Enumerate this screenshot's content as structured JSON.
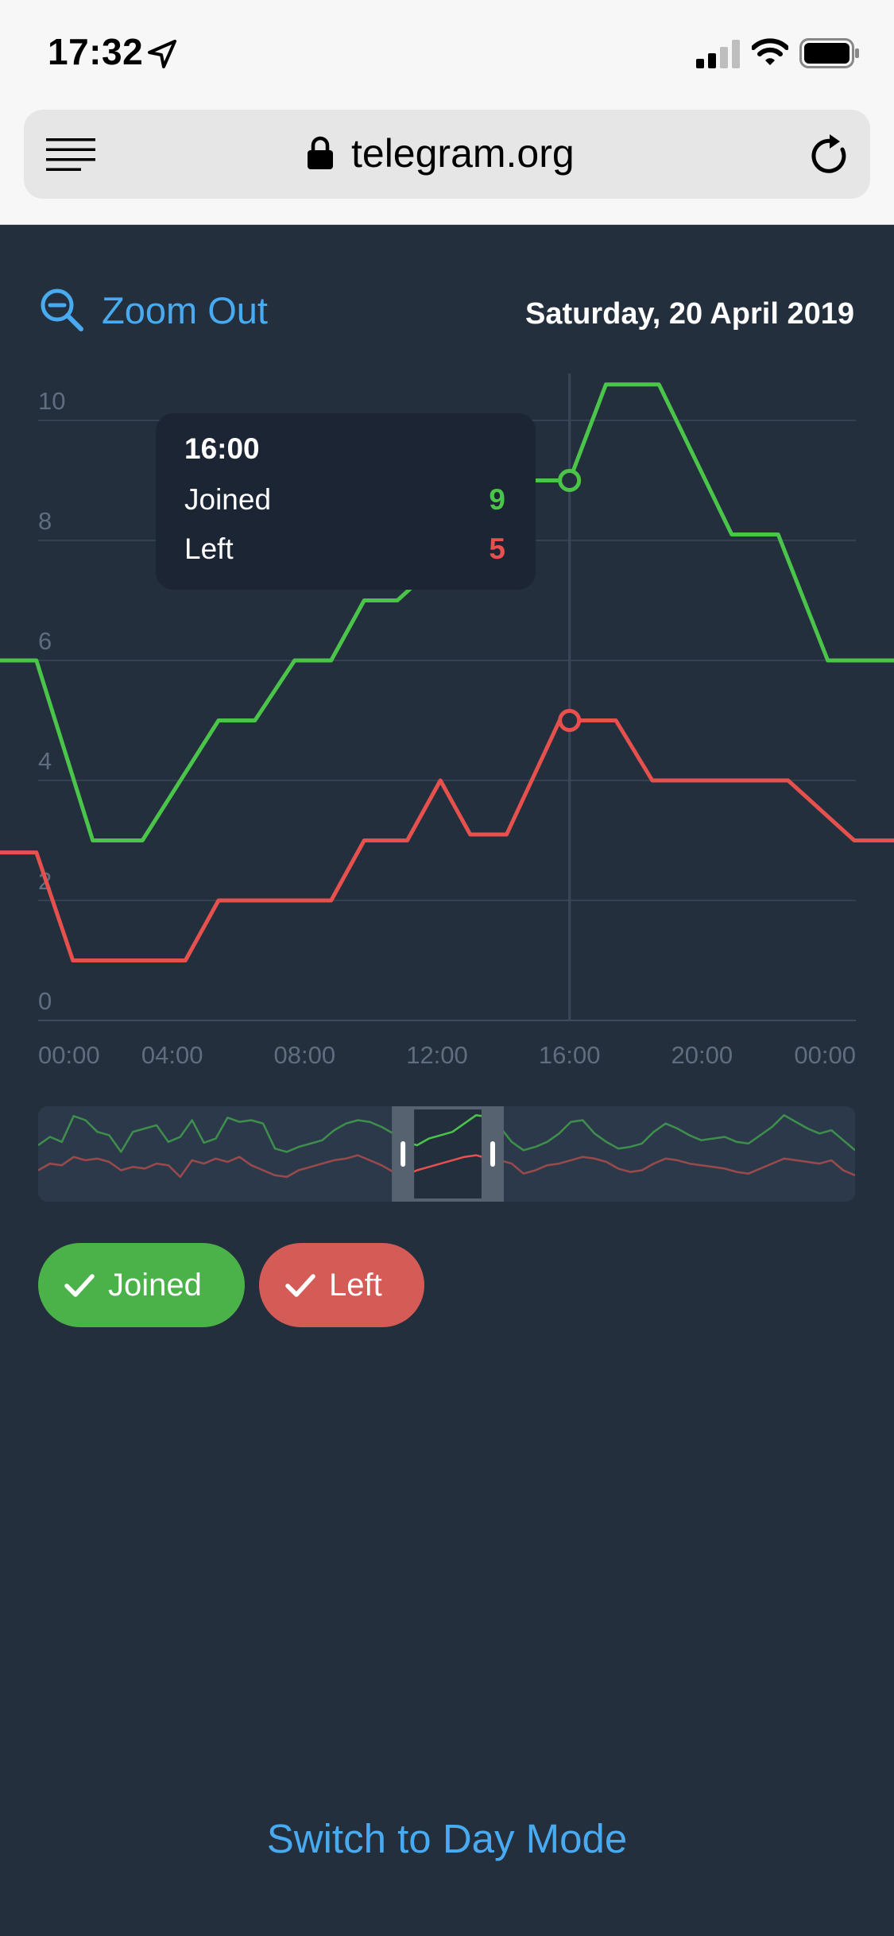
{
  "status_bar": {
    "time": "17:32",
    "nav_icon": "location-arrow-icon",
    "signal_icon": "cellular-signal-icon",
    "wifi_icon": "wifi-icon",
    "battery_icon": "battery-icon"
  },
  "browser": {
    "url": "telegram.org",
    "menu_icon": "reader-menu-icon",
    "lock_icon": "lock-icon",
    "reload_icon": "reload-icon"
  },
  "chart_header": {
    "zoom_out_label": "Zoom Out",
    "date": "Saturday, 20 April 2019"
  },
  "tooltip": {
    "time": "16:00",
    "joined_label": "Joined",
    "joined_value": "9",
    "left_label": "Left",
    "left_value": "5"
  },
  "chart_data": {
    "type": "line",
    "ylim": [
      0,
      10.8
    ],
    "y_ticks": [
      "0",
      "2",
      "4",
      "6",
      "8",
      "10"
    ],
    "x_ticks": [
      "00:00",
      "04:00",
      "08:00",
      "12:00",
      "16:00",
      "20:00",
      "00:00"
    ],
    "xlim": [
      -1.2,
      25.8
    ],
    "selected_x": 16,
    "series": [
      {
        "name": "Joined",
        "color": "#4BC44A",
        "points": [
          [
            -1.2,
            6
          ],
          [
            -0.1,
            6
          ],
          [
            1.6,
            3
          ],
          [
            3.1,
            3
          ],
          [
            5.4,
            5
          ],
          [
            6.5,
            5
          ],
          [
            7.7,
            6
          ],
          [
            8.8,
            6
          ],
          [
            9.8,
            7
          ],
          [
            10.8,
            7
          ],
          [
            14.8,
            9
          ],
          [
            16,
            9
          ],
          [
            17.1,
            10.6
          ],
          [
            18.7,
            10.6
          ],
          [
            20.9,
            8.1
          ],
          [
            22.3,
            8.1
          ],
          [
            23.8,
            6
          ],
          [
            25.8,
            6
          ]
        ]
      },
      {
        "name": "Left",
        "color": "#E6514E",
        "points": [
          [
            -1.2,
            2.8
          ],
          [
            -0.1,
            2.8
          ],
          [
            1,
            1
          ],
          [
            4.4,
            1
          ],
          [
            5.4,
            2
          ],
          [
            8.8,
            2
          ],
          [
            9.8,
            3
          ],
          [
            11.1,
            3
          ],
          [
            12.1,
            4
          ],
          [
            13,
            3.1
          ],
          [
            14.1,
            3.1
          ],
          [
            15.7,
            5
          ],
          [
            17.4,
            5
          ],
          [
            18.5,
            4
          ],
          [
            22.6,
            4
          ],
          [
            24.6,
            3
          ],
          [
            25.8,
            3
          ]
        ]
      }
    ]
  },
  "navigator": {
    "joined": [
      6.0,
      7.0,
      6.4,
      9.5,
      9.0,
      7.6,
      7.2,
      5.2,
      7.6,
      8.0,
      8.4,
      6.4,
      7.0,
      9.0,
      6.3,
      6.8,
      9.3,
      8.8,
      9.0,
      8.6,
      5.6,
      5.2,
      5.8,
      6.2,
      6.6,
      7.8,
      8.6,
      9.0,
      8.8,
      8.2,
      7.4,
      6.4,
      6.0,
      6.8,
      7.2,
      7.6,
      8.6,
      9.6,
      9.4,
      8.2,
      6.4,
      5.4,
      5.8,
      6.4,
      7.4,
      8.8,
      9.0,
      7.4,
      6.4,
      5.6,
      5.8,
      6.2,
      7.6,
      8.6,
      8.0,
      7.2,
      6.6,
      6.8,
      7.0,
      6.4,
      6.2,
      7.2,
      8.2,
      9.6,
      8.8,
      8.0,
      7.4,
      7.8,
      6.6,
      5.4
    ],
    "left": [
      3.0,
      3.8,
      3.6,
      4.6,
      4.2,
      4.4,
      4.0,
      3.0,
      3.4,
      3.2,
      3.8,
      3.6,
      2.2,
      4.2,
      3.8,
      4.4,
      4.0,
      4.6,
      3.6,
      3.0,
      2.4,
      2.2,
      3.0,
      3.4,
      3.8,
      4.2,
      4.4,
      4.8,
      4.2,
      3.6,
      2.8,
      2.4,
      3.0,
      3.4,
      3.8,
      4.2,
      4.6,
      4.8,
      4.4,
      4.2,
      3.8,
      2.6,
      3.0,
      3.6,
      3.8,
      4.2,
      4.6,
      4.4,
      4.0,
      3.2,
      2.8,
      3.0,
      3.8,
      4.4,
      4.2,
      3.8,
      3.6,
      3.4,
      3.2,
      2.8,
      2.6,
      3.2,
      3.8,
      4.4,
      4.2,
      4.0,
      3.8,
      4.2,
      3.0,
      2.4
    ],
    "window_start": 0.433,
    "window_end": 0.57
  },
  "legend": {
    "joined_label": "Joined",
    "left_label": "Left",
    "joined_color": "#4BB24A",
    "left_color": "#D55B57"
  },
  "footer": {
    "switch_label": "Switch to Day Mode"
  }
}
